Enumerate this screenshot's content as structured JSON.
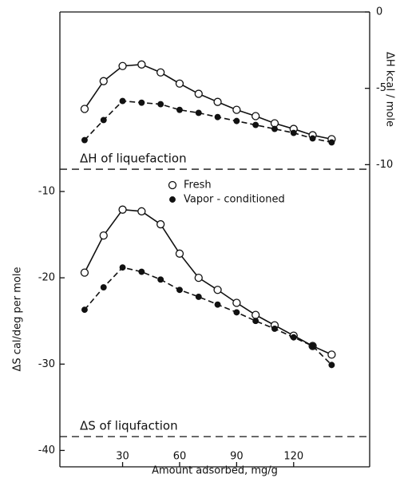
{
  "chart_data": [
    {
      "type": "line",
      "y_axis_label": "ΔH kcal / mole",
      "xlim": [
        -3,
        160
      ],
      "ylim": [
        -10.4,
        0
      ],
      "yticks": [
        0,
        -5,
        -10
      ],
      "x": [
        10,
        20,
        30,
        40,
        50,
        60,
        70,
        80,
        90,
        100,
        110,
        120,
        130,
        140
      ],
      "series": [
        {
          "name": "Fresh",
          "color": "#111",
          "values": [
            -6.35,
            -4.53,
            -3.54,
            -3.44,
            -3.96,
            -4.69,
            -5.36,
            -5.89,
            -6.41,
            -6.82,
            -7.29,
            -7.66,
            -8.07,
            -8.33
          ]
        },
        {
          "name": "Vapor - conditioned",
          "color": "#111",
          "values": [
            -8.39,
            -7.08,
            -5.83,
            -5.94,
            -6.04,
            -6.41,
            -6.61,
            -6.88,
            -7.14,
            -7.4,
            -7.66,
            -7.92,
            -8.28,
            -8.54
          ]
        }
      ],
      "reference_line": {
        "value": -10.3,
        "label": "ΔH of liquefaction"
      }
    },
    {
      "type": "line",
      "x_axis_label": "Amount adsorbed,  mg/g",
      "y_axis_label": "ΔS cal/deg per mole",
      "xlim": [
        -3,
        160
      ],
      "xticks": [
        30,
        60,
        90,
        120
      ],
      "ylim": [
        -41.9,
        -7.6
      ],
      "yticks": [
        -10,
        -20,
        -30,
        -40
      ],
      "x": [
        10,
        20,
        30,
        40,
        50,
        60,
        70,
        80,
        90,
        100,
        110,
        120,
        130,
        140
      ],
      "series": [
        {
          "name": "Fresh",
          "color": "#111",
          "values": [
            -19.4,
            -15.1,
            -12.1,
            -12.3,
            -13.8,
            -17.2,
            -20,
            -21.4,
            -22.9,
            -24.3,
            -25.5,
            -26.7,
            -27.9,
            -28.9
          ]
        },
        {
          "name": "Vapor - conditioned",
          "color": "#111",
          "values": [
            -23.7,
            -21.1,
            -18.8,
            -19.3,
            -20.2,
            -21.4,
            -22.2,
            -23.1,
            -24,
            -25,
            -25.9,
            -26.9,
            -27.9,
            -30.1
          ]
        }
      ],
      "legend": "top-center",
      "reference_line": {
        "value": -38.4,
        "label": "ΔS of liqufaction"
      }
    }
  ]
}
